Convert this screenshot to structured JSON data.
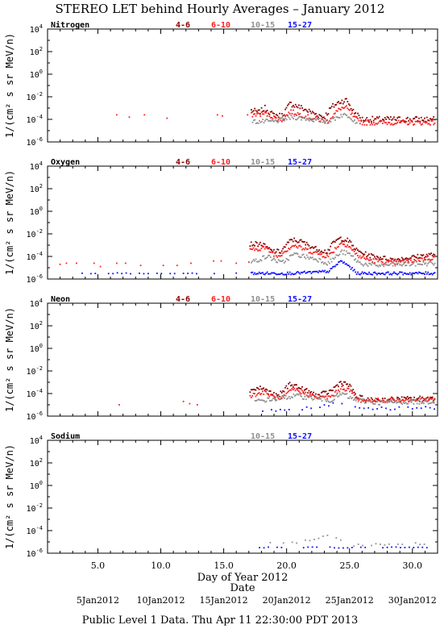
{
  "title": "STEREO LET behind Hourly Averages – January 2012",
  "footer": "Public Level 1 Data. Thu Apr 11 22:30:00 PDT 2013",
  "colors": {
    "4-6": "#8b0000",
    "6-10": "#ff2020",
    "10-15": "#909090",
    "15-27": "#1010ff",
    "axis": "#000000"
  },
  "chart_data": {
    "type": "scatter",
    "x_axis": {
      "label": "Day of Year 2012",
      "range": [
        1,
        32
      ],
      "ticks": [
        5.0,
        10.0,
        15.0,
        20.0,
        25.0,
        30.0
      ],
      "tick_labels": [
        "5.0",
        "10.0",
        "15.0",
        "20.0",
        "25.0",
        "30.0"
      ]
    },
    "date_axis": {
      "label": "Date",
      "labels": [
        {
          "day": 5,
          "text": "5Jan2012"
        },
        {
          "day": 10,
          "text": "10Jan2012"
        },
        {
          "day": 15,
          "text": "15Jan2012"
        },
        {
          "day": 20,
          "text": "20Jan2012"
        },
        {
          "day": 25,
          "text": "25Jan2012"
        },
        {
          "day": 30,
          "text": "30Jan2012"
        }
      ]
    },
    "y_axis": {
      "label": "1/(cm² s sr MeV/n)",
      "scale": "log",
      "exp_range": [
        -6,
        4
      ],
      "ticks": [
        4,
        2,
        0,
        -2,
        -4,
        -6
      ]
    },
    "panels": [
      {
        "label": "Nitrogen",
        "legend": [
          "4-6",
          "6-10",
          "10-15",
          "15-27"
        ],
        "quiet_points": [
          [
            6.5,
            -3.6
          ],
          [
            8.7,
            -3.6
          ],
          [
            10.5,
            -3.9
          ],
          [
            14.5,
            -3.6
          ],
          [
            14.9,
            -3.7
          ],
          [
            16.9,
            -3.6
          ],
          [
            7.5,
            -3.8
          ]
        ],
        "series": [
          {
            "name": "4-6",
            "keypoints": [
              [
                17.2,
                -3.2
              ],
              [
                17.8,
                -3.4
              ],
              [
                18.3,
                -3.0
              ],
              [
                18.9,
                -3.6
              ],
              [
                19.6,
                -3.7
              ],
              [
                20.3,
                -2.6
              ],
              [
                21.0,
                -2.9
              ],
              [
                22.0,
                -3.4
              ],
              [
                23.0,
                -3.8
              ],
              [
                23.6,
                -2.9
              ],
              [
                24.3,
                -2.4
              ],
              [
                24.8,
                -2.3
              ],
              [
                25.3,
                -3.3
              ],
              [
                26.0,
                -4.0
              ],
              [
                28.0,
                -4.0
              ],
              [
                31.8,
                -4.0
              ]
            ],
            "noise": 0.25
          },
          {
            "name": "6-10",
            "keypoints": [
              [
                17.2,
                -3.6
              ],
              [
                18.3,
                -3.5
              ],
              [
                19.6,
                -4.1
              ],
              [
                20.3,
                -3.3
              ],
              [
                22.0,
                -3.9
              ],
              [
                23.2,
                -4.2
              ],
              [
                24.3,
                -3.0
              ],
              [
                24.8,
                -3.0
              ],
              [
                25.4,
                -3.9
              ],
              [
                26.0,
                -4.3
              ],
              [
                31.8,
                -4.3
              ]
            ],
            "noise": 0.2
          },
          {
            "name": "10-15",
            "keypoints": [
              [
                17.3,
                -4.2
              ],
              [
                19.0,
                -4.2
              ],
              [
                20.5,
                -3.8
              ],
              [
                23.3,
                -4.2
              ],
              [
                24.4,
                -3.6
              ],
              [
                25.0,
                -3.7
              ],
              [
                25.6,
                -4.3
              ]
            ],
            "noise": 0.2
          },
          {
            "name": "15-27",
            "keypoints": [],
            "noise": 0.0
          }
        ]
      },
      {
        "label": "Oxygen",
        "legend": [
          "4-6",
          "6-10",
          "10-15",
          "15-27"
        ],
        "quiet_points": [
          [
            2.0,
            -4.7
          ],
          [
            2.5,
            -4.6
          ],
          [
            3.3,
            -4.6
          ],
          [
            4.7,
            -4.6
          ],
          [
            5.2,
            -4.9
          ],
          [
            6.5,
            -4.6
          ],
          [
            7.2,
            -4.6
          ],
          [
            8.4,
            -4.8
          ],
          [
            10.2,
            -4.8
          ],
          [
            11.3,
            -4.8
          ],
          [
            12.4,
            -4.6
          ],
          [
            14.2,
            -4.4
          ],
          [
            14.8,
            -4.4
          ],
          [
            16.0,
            -4.6
          ],
          [
            17.0,
            -4.5
          ]
        ],
        "series": [
          {
            "name": "4-6",
            "keypoints": [
              [
                17.1,
                -2.9
              ],
              [
                18.0,
                -2.9
              ],
              [
                18.8,
                -3.5
              ],
              [
                19.5,
                -3.6
              ],
              [
                20.4,
                -2.5
              ],
              [
                21.2,
                -2.7
              ],
              [
                22.3,
                -3.3
              ],
              [
                23.2,
                -3.6
              ],
              [
                23.8,
                -2.7
              ],
              [
                24.3,
                -2.4
              ],
              [
                24.9,
                -2.6
              ],
              [
                25.6,
                -3.5
              ],
              [
                26.5,
                -3.9
              ],
              [
                28.5,
                -4.3
              ],
              [
                31.8,
                -3.8
              ]
            ],
            "noise": 0.2
          },
          {
            "name": "6-10",
            "keypoints": [
              [
                17.1,
                -3.5
              ],
              [
                18.2,
                -3.2
              ],
              [
                19.3,
                -4.0
              ],
              [
                20.5,
                -3.0
              ],
              [
                22.3,
                -3.7
              ],
              [
                23.3,
                -4.0
              ],
              [
                24.3,
                -2.8
              ],
              [
                24.9,
                -3.0
              ],
              [
                25.6,
                -3.9
              ],
              [
                26.5,
                -4.3
              ],
              [
                28.5,
                -4.6
              ],
              [
                31.8,
                -4.1
              ]
            ],
            "noise": 0.2
          },
          {
            "name": "10-15",
            "keypoints": [
              [
                17.2,
                -4.5
              ],
              [
                18.5,
                -4.0
              ],
              [
                19.6,
                -4.6
              ],
              [
                20.6,
                -3.8
              ],
              [
                22.6,
                -4.3
              ],
              [
                23.3,
                -4.6
              ],
              [
                24.4,
                -3.6
              ],
              [
                25.0,
                -3.8
              ],
              [
                25.8,
                -4.6
              ],
              [
                27.0,
                -4.8
              ],
              [
                31.8,
                -4.6
              ]
            ],
            "noise": 0.2
          },
          {
            "name": "15-27",
            "keypoints": [
              [
                17.2,
                -5.5
              ],
              [
                19.0,
                -5.5
              ],
              [
                20.0,
                -5.5
              ],
              [
                22.5,
                -5.4
              ],
              [
                23.4,
                -5.3
              ],
              [
                24.3,
                -4.4
              ],
              [
                24.9,
                -4.8
              ],
              [
                25.6,
                -5.5
              ],
              [
                31.8,
                -5.5
              ]
            ],
            "noise": 0.12
          },
          {
            "name": "15-27",
            "keypoints": [
              [
                2.7,
                -5.5
              ],
              [
                3.5,
                -5.5
              ],
              [
                6.0,
                -5.5
              ],
              [
                8.0,
                -5.5
              ],
              [
                10.0,
                -5.5
              ],
              [
                11.0,
                -5.5
              ],
              [
                14.5,
                -5.5
              ],
              [
                15.2,
                -5.5
              ],
              [
                16.8,
                -5.5
              ]
            ],
            "noise": 0.05,
            "sparse": true
          }
        ]
      },
      {
        "label": "Neon",
        "legend": [
          "4-6",
          "6-10",
          "10-15",
          "15-27"
        ],
        "quiet_points": [
          [
            6.7,
            -5.0
          ],
          [
            11.8,
            -4.7
          ],
          [
            12.3,
            -4.9
          ],
          [
            12.9,
            -5.0
          ]
        ],
        "series": [
          {
            "name": "4-6",
            "keypoints": [
              [
                17.1,
                -3.7
              ],
              [
                18.0,
                -3.5
              ],
              [
                19.3,
                -4.3
              ],
              [
                20.3,
                -3.1
              ],
              [
                21.2,
                -3.6
              ],
              [
                22.5,
                -4.2
              ],
              [
                23.5,
                -3.8
              ],
              [
                24.3,
                -3.0
              ],
              [
                24.9,
                -3.2
              ],
              [
                25.6,
                -4.3
              ],
              [
                26.5,
                -4.6
              ],
              [
                31.8,
                -4.4
              ]
            ],
            "noise": 0.22
          },
          {
            "name": "6-10",
            "keypoints": [
              [
                17.1,
                -4.2
              ],
              [
                18.2,
                -3.9
              ],
              [
                19.5,
                -4.6
              ],
              [
                20.5,
                -3.6
              ],
              [
                22.5,
                -4.4
              ],
              [
                23.5,
                -4.3
              ],
              [
                24.4,
                -3.5
              ],
              [
                25.0,
                -3.7
              ],
              [
                25.7,
                -4.6
              ],
              [
                31.8,
                -4.6
              ]
            ],
            "noise": 0.18
          },
          {
            "name": "10-15",
            "keypoints": [
              [
                17.5,
                -4.7
              ],
              [
                19.0,
                -4.5
              ],
              [
                20.7,
                -4.2
              ],
              [
                23.5,
                -4.6
              ],
              [
                24.5,
                -4.0
              ],
              [
                25.2,
                -4.5
              ],
              [
                27.0,
                -4.8
              ],
              [
                31.8,
                -4.7
              ]
            ],
            "noise": 0.2
          },
          {
            "name": "15-27",
            "keypoints": [
              [
                17.4,
                -5.5
              ],
              [
                19.0,
                -5.5
              ],
              [
                22.0,
                -5.3
              ],
              [
                24.3,
                -4.8
              ],
              [
                25.0,
                -5.0
              ],
              [
                26.0,
                -5.3
              ],
              [
                31.8,
                -5.3
              ]
            ],
            "noise": 0.15,
            "sparse": true
          }
        ]
      },
      {
        "label": "Sodium",
        "legend": [
          "10-15",
          "15-27"
        ],
        "quiet_points": [],
        "series": [
          {
            "name": "10-15",
            "keypoints": [
              [
                18.0,
                -5.1
              ],
              [
                20.5,
                -5.1
              ],
              [
                23.8,
                -4.4
              ],
              [
                24.2,
                -4.8
              ],
              [
                24.8,
                -5.2
              ],
              [
                25.2,
                -5.3
              ],
              [
                31.3,
                -5.1
              ]
            ],
            "noise": 0.1,
            "sparse": true
          },
          {
            "name": "15-27",
            "keypoints": [
              [
                17.5,
                -5.5
              ],
              [
                23.6,
                -5.5
              ],
              [
                24.9,
                -5.5
              ],
              [
                31.5,
                -5.5
              ]
            ],
            "noise": 0.05,
            "sparse": true
          }
        ]
      }
    ]
  }
}
